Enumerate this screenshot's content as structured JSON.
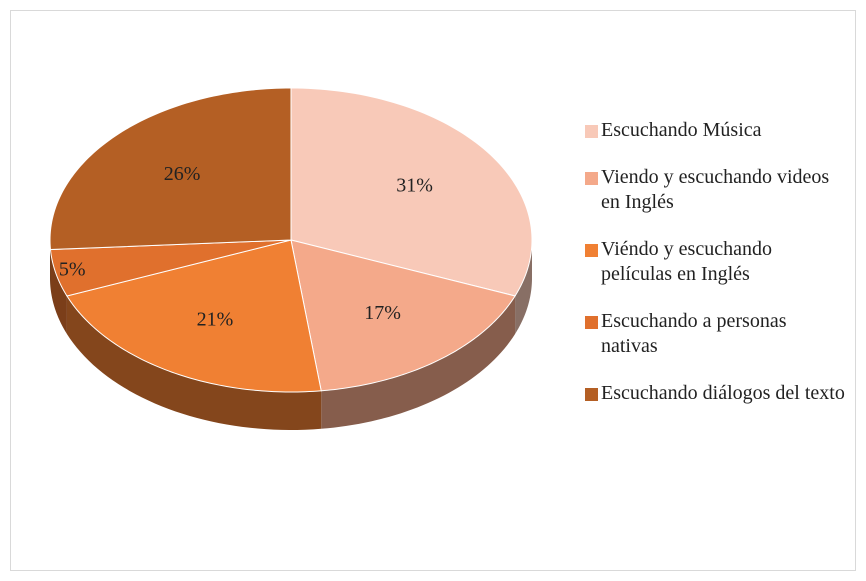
{
  "chart_data": {
    "type": "pie",
    "categories": [
      "Escuchando Música",
      "Viendo y escuchando videos en Inglés",
      "Viéndo y escuchando películas en Inglés",
      "Escuchando a personas nativas",
      "Escuchando diálogos del texto"
    ],
    "values": [
      31,
      17,
      21,
      5,
      26
    ],
    "value_labels": [
      "31%",
      "17%",
      "21%",
      "5%",
      "26%"
    ],
    "colors": [
      "#f8c9b8",
      "#f4a98a",
      "#f08033",
      "#e0702d",
      "#b45f24"
    ],
    "legend": "right"
  }
}
